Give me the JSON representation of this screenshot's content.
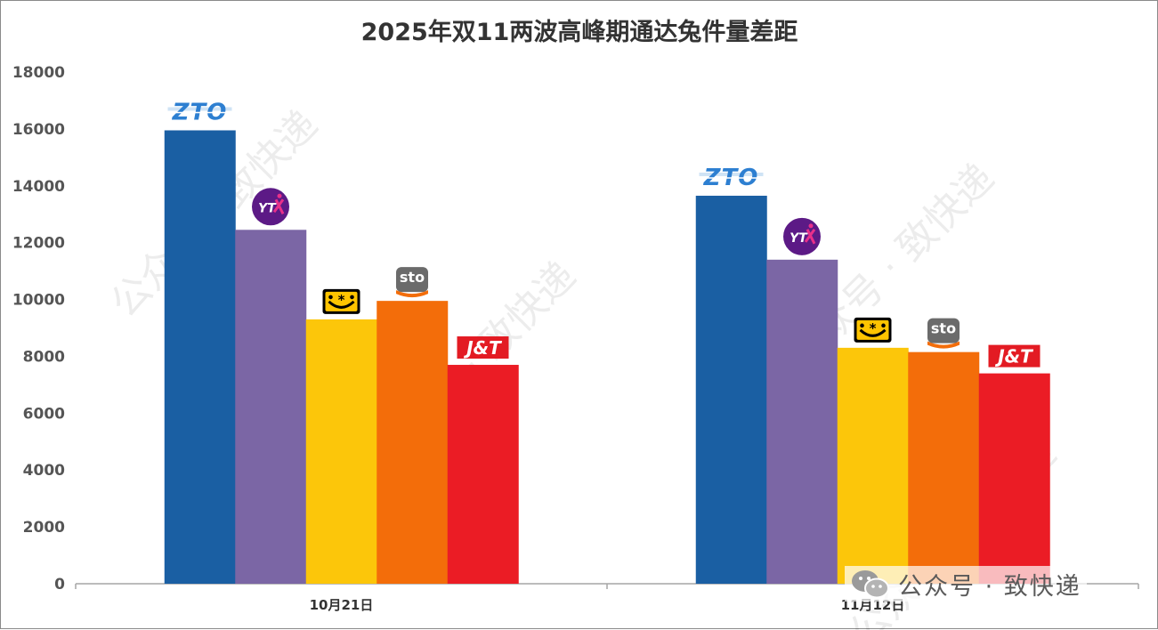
{
  "chart_data": {
    "type": "bar",
    "title": "2025年双11两波高峰期通达兔件量差距",
    "categories": [
      "10月21日",
      "11月12日"
    ],
    "ylim": [
      0,
      18000
    ],
    "yticks": [
      0,
      2000,
      4000,
      6000,
      8000,
      10000,
      12000,
      14000,
      16000,
      18000
    ],
    "grid": false,
    "legend": "none",
    "series": [
      {
        "name": "ZTO",
        "logo": "zto-logo",
        "color": "#1A5FA3",
        "values": [
          15950,
          13650
        ]
      },
      {
        "name": "YTO",
        "logo": "yto-logo",
        "color": "#7B66A5",
        "values": [
          12450,
          11400
        ]
      },
      {
        "name": "Yunda",
        "logo": "yunda-logo",
        "color": "#FCC60A",
        "values": [
          9300,
          8300
        ]
      },
      {
        "name": "STO",
        "logo": "sto-logo",
        "color": "#F36D0A",
        "values": [
          9950,
          8150
        ]
      },
      {
        "name": "J&T",
        "logo": "jt-logo",
        "color": "#EB1C25",
        "values": [
          7700,
          7400
        ]
      }
    ]
  },
  "logos": {
    "zto": "ZTO",
    "yto": "YT",
    "sto": "sto",
    "jt": "J&T"
  },
  "watermark": {
    "text": "公众号 · 致快递",
    "icon": "wechat-icon"
  }
}
